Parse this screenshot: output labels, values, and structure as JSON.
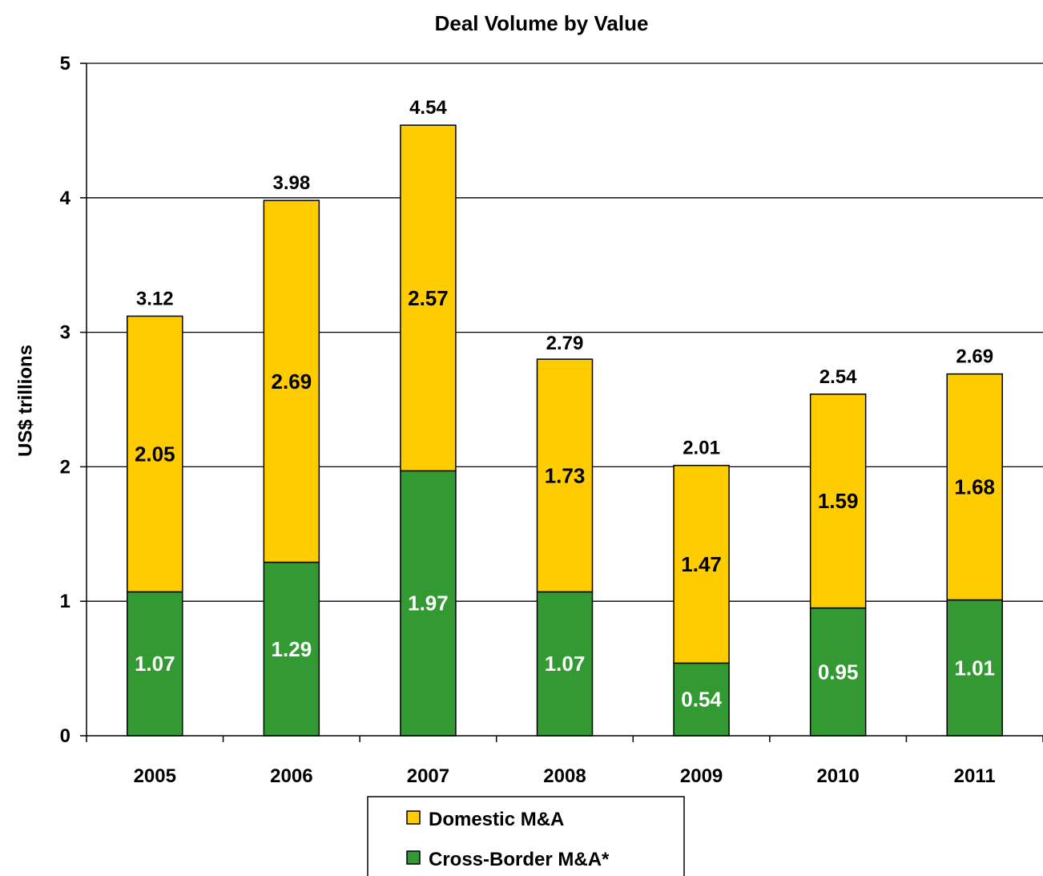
{
  "chart_data": {
    "type": "bar",
    "stacked": true,
    "title": "Deal Volume by Value",
    "xlabel": "",
    "ylabel": "US$ trillions",
    "ylim": [
      0,
      5
    ],
    "yticks": [
      "0",
      "1",
      "2",
      "3",
      "4",
      "5"
    ],
    "grid": true,
    "legend_position": "bottom",
    "categories": [
      "2005",
      "2006",
      "2007",
      "2008",
      "2009",
      "2010",
      "2011"
    ],
    "series": [
      {
        "name": "Cross-Border M&A*",
        "color": "#339933",
        "label_color": "#ffffff",
        "values": [
          1.07,
          1.29,
          1.97,
          1.07,
          0.54,
          0.95,
          1.01
        ],
        "labels": [
          "1.07",
          "1.29",
          "1.97",
          "1.07",
          "0.54",
          "0.95",
          "1.01"
        ]
      },
      {
        "name": "Domestic M&A",
        "color": "#FFCC00",
        "label_color": "#000000",
        "values": [
          2.05,
          2.69,
          2.57,
          1.73,
          1.47,
          1.59,
          1.68
        ],
        "labels": [
          "2.05",
          "2.69",
          "2.57",
          "1.73",
          "1.47",
          "1.59",
          "1.68"
        ]
      }
    ],
    "totals": [
      3.12,
      3.98,
      4.54,
      2.79,
      2.01,
      2.54,
      2.69
    ],
    "total_labels": [
      "3.12",
      "3.98",
      "4.54",
      "2.79",
      "2.01",
      "2.54",
      "2.69"
    ]
  }
}
